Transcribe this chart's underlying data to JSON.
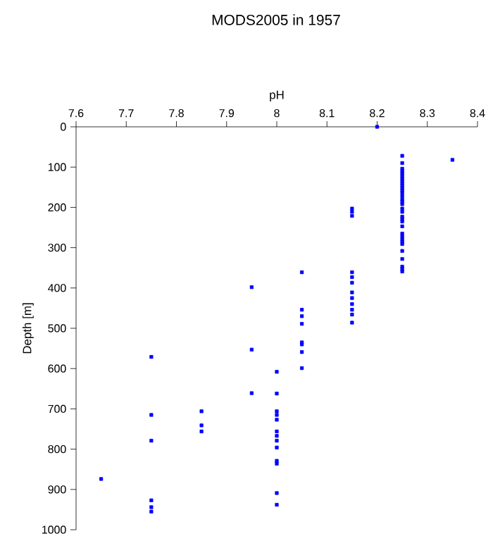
{
  "chart_data": {
    "type": "scatter",
    "title": "MODS2005 in 1957",
    "xlabel": "pH",
    "ylabel": "Depth [m]",
    "xlim": [
      7.6,
      8.4
    ],
    "xticks": [
      7.6,
      7.7,
      7.8,
      7.9,
      8,
      8.1,
      8.2,
      8.3,
      8.4
    ],
    "ylim": [
      1000,
      0
    ],
    "yticks": [
      0,
      100,
      200,
      300,
      400,
      500,
      600,
      700,
      800,
      900,
      1000
    ],
    "grid": false,
    "marker": "square",
    "series": [
      {
        "color": "#0000ff",
        "x": [
          8.25,
          8.25,
          8.25,
          8.25,
          8.25,
          8.25,
          8.25,
          8.25,
          8.25,
          8.25,
          8.25,
          8.25,
          8.25,
          8.25,
          8.25,
          8.25,
          8.25,
          8.25,
          8.25,
          8.25,
          8.25,
          8.25,
          8.25,
          8.25,
          8.25,
          8.25,
          8.25,
          8.25,
          8.25,
          8.25,
          8.25,
          8.25,
          8.25,
          8.35,
          8.2,
          8.15,
          8.15,
          8.15,
          8.15,
          8.15,
          8.15,
          8.15,
          8.15,
          8.15,
          8.15,
          8.15,
          8.15,
          8.05,
          8.05,
          8.05,
          8.05,
          8.05,
          8.05,
          8.05,
          8.05,
          7.95,
          7.95,
          7.95,
          7.75,
          7.75,
          7.75,
          7.75,
          7.75,
          7.75,
          7.85,
          7.85,
          7.85,
          8,
          8,
          8,
          8,
          8,
          8,
          8,
          8,
          8,
          8,
          8,
          8,
          8,
          7.65
        ],
        "values": [
          72,
          90,
          104,
          110,
          116,
          122,
          128,
          134,
          140,
          146,
          152,
          158,
          164,
          172,
          180,
          186,
          192,
          203,
          211,
          223,
          229,
          235,
          247,
          265,
          272,
          279,
          285,
          291,
          308,
          328,
          347,
          353,
          359,
          82,
          0,
          203,
          211,
          221,
          361,
          373,
          387,
          411,
          425,
          440,
          454,
          466,
          486,
          361,
          454,
          470,
          489,
          535,
          540,
          559,
          599,
          398,
          553,
          661,
          571,
          715,
          779,
          927,
          944,
          955,
          706,
          741,
          756,
          608,
          662,
          706,
          715,
          727,
          756,
          767,
          779,
          796,
          829,
          836,
          909,
          938,
          874
        ]
      }
    ]
  }
}
